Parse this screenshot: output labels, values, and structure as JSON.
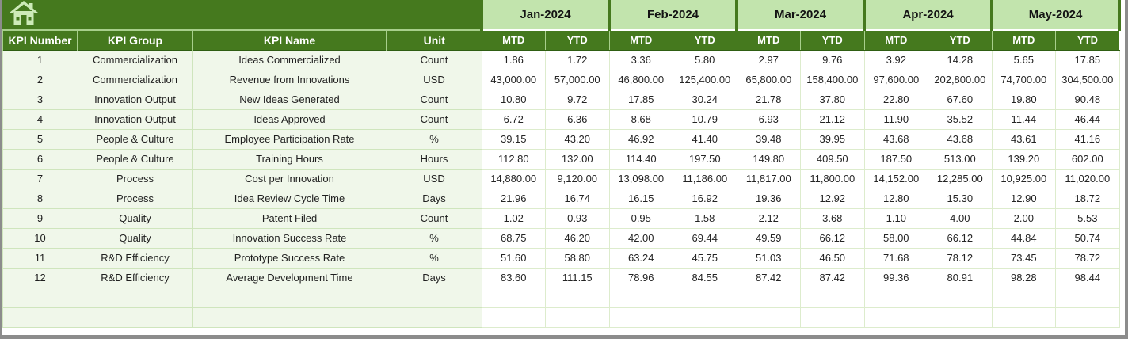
{
  "window": {
    "home_icon": "home-icon"
  },
  "colors": {
    "header_dark_green": "#45791e",
    "month_light_green": "#c2e4ad",
    "row_pale_green": "#f0f7ea",
    "gridline_green": "#cfe5bd",
    "frame_grey": "#8c8c8c",
    "icon_pale_green": "#cdeab8"
  },
  "table": {
    "left_headers": [
      "KPI Number",
      "KPI Group",
      "KPI Name",
      "Unit"
    ],
    "months": [
      "Jan-2024",
      "Feb-2024",
      "Mar-2024",
      "Apr-2024",
      "May-2024"
    ],
    "sub_headers": [
      "MTD",
      "YTD"
    ],
    "rows": [
      {
        "kpi_number": "1",
        "kpi_group": "Commercialization",
        "kpi_name": "Ideas Commercialized",
        "unit": "Count",
        "values": [
          "1.86",
          "1.72",
          "3.36",
          "5.80",
          "2.97",
          "9.76",
          "3.92",
          "14.28",
          "5.65",
          "17.85"
        ]
      },
      {
        "kpi_number": "2",
        "kpi_group": "Commercialization",
        "kpi_name": "Revenue from Innovations",
        "unit": "USD",
        "values": [
          "43,000.00",
          "57,000.00",
          "46,800.00",
          "125,400.00",
          "65,800.00",
          "158,400.00",
          "97,600.00",
          "202,800.00",
          "74,700.00",
          "304,500.00"
        ]
      },
      {
        "kpi_number": "3",
        "kpi_group": "Innovation Output",
        "kpi_name": "New Ideas Generated",
        "unit": "Count",
        "values": [
          "10.80",
          "9.72",
          "17.85",
          "30.24",
          "21.78",
          "37.80",
          "22.80",
          "67.60",
          "19.80",
          "90.48"
        ]
      },
      {
        "kpi_number": "4",
        "kpi_group": "Innovation Output",
        "kpi_name": "Ideas Approved",
        "unit": "Count",
        "values": [
          "6.72",
          "6.36",
          "8.68",
          "10.79",
          "6.93",
          "21.12",
          "11.90",
          "35.52",
          "11.44",
          "46.44"
        ]
      },
      {
        "kpi_number": "5",
        "kpi_group": "People & Culture",
        "kpi_name": "Employee Participation Rate",
        "unit": "%",
        "values": [
          "39.15",
          "43.20",
          "46.92",
          "41.40",
          "39.48",
          "39.95",
          "43.68",
          "43.68",
          "43.61",
          "41.16"
        ]
      },
      {
        "kpi_number": "6",
        "kpi_group": "People & Culture",
        "kpi_name": "Training Hours",
        "unit": "Hours",
        "values": [
          "112.80",
          "132.00",
          "114.40",
          "197.50",
          "149.80",
          "409.50",
          "187.50",
          "513.00",
          "139.20",
          "602.00"
        ]
      },
      {
        "kpi_number": "7",
        "kpi_group": "Process",
        "kpi_name": "Cost per Innovation",
        "unit": "USD",
        "values": [
          "14,880.00",
          "9,120.00",
          "13,098.00",
          "11,186.00",
          "11,817.00",
          "11,800.00",
          "14,152.00",
          "12,285.00",
          "10,925.00",
          "11,020.00"
        ]
      },
      {
        "kpi_number": "8",
        "kpi_group": "Process",
        "kpi_name": "Idea Review Cycle Time",
        "unit": "Days",
        "values": [
          "21.96",
          "16.74",
          "16.15",
          "16.92",
          "19.36",
          "12.92",
          "12.80",
          "15.30",
          "12.90",
          "18.72"
        ]
      },
      {
        "kpi_number": "9",
        "kpi_group": "Quality",
        "kpi_name": "Patent Filed",
        "unit": "Count",
        "values": [
          "1.02",
          "0.93",
          "0.95",
          "1.58",
          "2.12",
          "3.68",
          "1.10",
          "4.00",
          "2.00",
          "5.53"
        ]
      },
      {
        "kpi_number": "10",
        "kpi_group": "Quality",
        "kpi_name": "Innovation Success Rate",
        "unit": "%",
        "values": [
          "68.75",
          "46.20",
          "42.00",
          "69.44",
          "49.59",
          "66.12",
          "58.00",
          "66.12",
          "44.84",
          "50.74"
        ]
      },
      {
        "kpi_number": "11",
        "kpi_group": "R&D Efficiency",
        "kpi_name": "Prototype Success Rate",
        "unit": "%",
        "values": [
          "51.60",
          "58.80",
          "63.24",
          "45.75",
          "51.03",
          "46.50",
          "71.68",
          "78.12",
          "73.45",
          "78.72"
        ]
      },
      {
        "kpi_number": "12",
        "kpi_group": "R&D Efficiency",
        "kpi_name": "Average Development Time",
        "unit": "Days",
        "values": [
          "83.60",
          "111.15",
          "78.96",
          "84.55",
          "87.42",
          "87.42",
          "99.36",
          "80.91",
          "98.28",
          "98.44"
        ]
      }
    ],
    "empty_rows": 2
  }
}
